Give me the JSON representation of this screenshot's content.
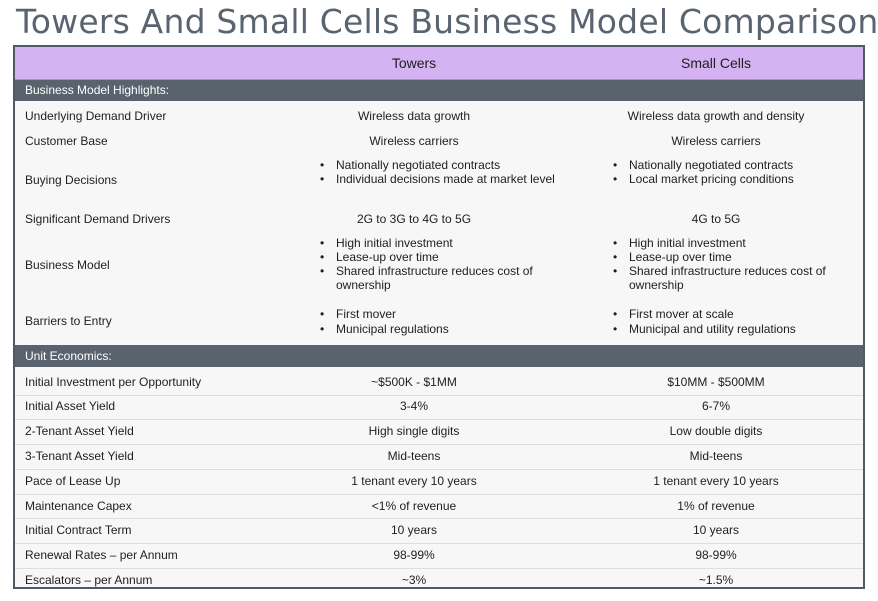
{
  "title": "Towers And Small Cells Business Model Comparison",
  "columns": {
    "towers": "Towers",
    "small_cells": "Small Cells"
  },
  "sections": {
    "highlights": "Business Model Highlights:",
    "unit_economics": "Unit Economics:"
  },
  "highlights": {
    "demand_driver": {
      "label": "Underlying Demand Driver",
      "towers": "Wireless data growth",
      "small_cells": "Wireless data growth and density"
    },
    "customer_base": {
      "label": "Customer Base",
      "towers": "Wireless carriers",
      "small_cells": "Wireless carriers"
    },
    "buying_decisions": {
      "label": "Buying Decisions",
      "towers": [
        "Nationally negotiated contracts",
        "Individual decisions made at market level"
      ],
      "small_cells": [
        "Nationally negotiated contracts",
        "Local market pricing conditions"
      ]
    },
    "significant_drivers": {
      "label": "Significant Demand Drivers",
      "towers": "2G to 3G to 4G to 5G",
      "small_cells": "4G to 5G"
    },
    "business_model": {
      "label": "Business Model",
      "towers": [
        "High initial investment",
        "Lease-up over time",
        "Shared infrastructure reduces cost of ownership"
      ],
      "small_cells": [
        "High initial investment",
        "Lease-up over time",
        "Shared infrastructure reduces cost of ownership"
      ]
    },
    "barriers": {
      "label": "Barriers to Entry",
      "towers": [
        "First mover",
        "Municipal regulations"
      ],
      "small_cells": [
        "First mover at scale",
        "Municipal and utility regulations"
      ]
    }
  },
  "unit_economics": [
    {
      "label": "Initial Investment per Opportunity",
      "towers": "~$500K - $1MM",
      "small_cells": "$10MM - $500MM"
    },
    {
      "label": "Initial Asset Yield",
      "towers": "3-4%",
      "small_cells": "6-7%"
    },
    {
      "label": "2-Tenant Asset Yield",
      "towers": "High single digits",
      "small_cells": "Low double digits"
    },
    {
      "label": "3-Tenant Asset Yield",
      "towers": "Mid-teens",
      "small_cells": "Mid-teens"
    },
    {
      "label": "Pace of Lease Up",
      "towers": "1 tenant every 10 years",
      "small_cells": "1 tenant every 10 years"
    },
    {
      "label": "Maintenance Capex",
      "towers": "<1% of revenue",
      "small_cells": "1% of revenue"
    },
    {
      "label": "Initial Contract Term",
      "towers": "10 years",
      "small_cells": "10 years"
    },
    {
      "label": "Renewal Rates – per Annum",
      "towers": "98-99%",
      "small_cells": "98-99%"
    },
    {
      "label": "Escalators – per Annum",
      "towers": "~3%",
      "small_cells": "~1.5%"
    }
  ]
}
